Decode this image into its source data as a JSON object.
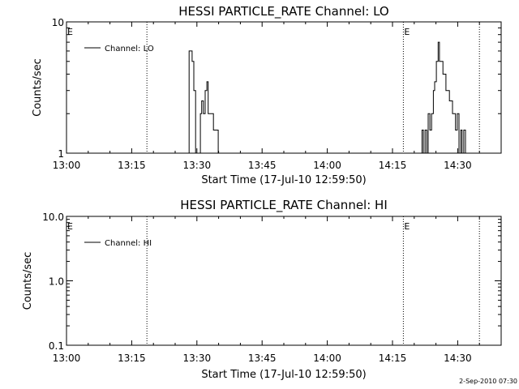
{
  "chart_data": [
    {
      "type": "line",
      "title": "HESSI PARTICLE_RATE Channel: LO",
      "xlabel": "Start Time (17-Jul-10 12:59:50)",
      "ylabel": "Counts/sec",
      "x_unit": "minutes after 13:00",
      "xlim": [
        0,
        100
      ],
      "ylim": [
        1,
        10
      ],
      "y_scale": "log",
      "x_ticks": [
        "13:00",
        "13:15",
        "13:30",
        "13:45",
        "14:00",
        "14:15",
        "14:30"
      ],
      "x_tick_values": [
        0,
        15,
        30,
        45,
        60,
        75,
        90
      ],
      "y_ticks": [
        "1",
        "10"
      ],
      "y_tick_values": [
        1,
        10
      ],
      "legend": {
        "position": "top-left",
        "entries": [
          "Channel: LO"
        ]
      },
      "markers": [
        {
          "label": "E",
          "x": -0.2
        },
        {
          "label": "",
          "x": 18.5
        },
        {
          "label": "E",
          "x": 77.5
        },
        {
          "label": "",
          "x": 95
        }
      ],
      "series": [
        {
          "name": "Channel: LO",
          "x": [
            27.8,
            28.2,
            28.5,
            28.9,
            29.3,
            29.7,
            30.0,
            30.4,
            30.8,
            31.1,
            31.5,
            31.9,
            32.3,
            32.6,
            33.0,
            33.4,
            33.8,
            34.1,
            34.5,
            34.9,
            35.2,
            81.4,
            81.8,
            82.1,
            82.5,
            82.9,
            83.2,
            83.6,
            84.0,
            84.4,
            84.7,
            85.1,
            85.5,
            85.8,
            86.2,
            86.6,
            87.0,
            87.3,
            87.7,
            88.1,
            88.4,
            88.8,
            89.2,
            89.5,
            89.9,
            90.3,
            90.7,
            91.0,
            91.4,
            91.8,
            92.1
          ],
          "y": [
            1.0,
            6.0,
            6.0,
            5.0,
            3.0,
            1.0,
            1.0,
            1.0,
            2.0,
            2.5,
            2.0,
            3.0,
            3.5,
            2.0,
            2.0,
            2.0,
            1.5,
            1.5,
            1.5,
            1.0,
            1.0,
            1.0,
            1.5,
            1.0,
            1.5,
            1.0,
            2.0,
            1.5,
            2.0,
            3.0,
            3.5,
            5.0,
            7.0,
            5.0,
            5.0,
            4.0,
            4.0,
            3.0,
            3.0,
            2.5,
            2.5,
            2.0,
            2.0,
            1.5,
            2.0,
            1.0,
            1.5,
            1.0,
            1.5,
            1.0,
            1.0
          ]
        }
      ]
    },
    {
      "type": "line",
      "title": "HESSI PARTICLE_RATE Channel: HI",
      "xlabel": "Start Time (17-Jul-10 12:59:50)",
      "ylabel": "Counts/sec",
      "x_unit": "minutes after 13:00",
      "xlim": [
        0,
        100
      ],
      "ylim": [
        0.1,
        10
      ],
      "y_scale": "log",
      "x_ticks": [
        "13:00",
        "13:15",
        "13:30",
        "13:45",
        "14:00",
        "14:15",
        "14:30"
      ],
      "x_tick_values": [
        0,
        15,
        30,
        45,
        60,
        75,
        90
      ],
      "y_ticks": [
        "0.1",
        "1.0",
        "10.0"
      ],
      "y_tick_values": [
        0.1,
        1,
        10
      ],
      "legend": {
        "position": "top-left",
        "entries": [
          "Channel: HI"
        ]
      },
      "markers": [
        {
          "label": "E",
          "x": -0.2
        },
        {
          "label": "",
          "x": 18.5
        },
        {
          "label": "E",
          "x": 77.5
        },
        {
          "label": "",
          "x": 95
        }
      ],
      "series": [
        {
          "name": "Channel: HI",
          "x": [],
          "y": []
        }
      ]
    }
  ],
  "footer": {
    "timestamp": "2-Sep-2010 07:30"
  }
}
